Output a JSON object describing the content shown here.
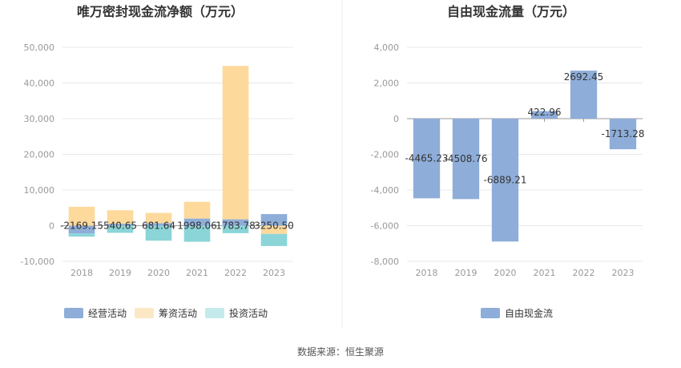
{
  "source_label": "数据来源：恒生聚源",
  "chart_data": [
    {
      "type": "bar",
      "stacked": true,
      "title": "唯万密封现金流净额（万元）",
      "categories": [
        "2018",
        "2019",
        "2020",
        "2021",
        "2022",
        "2023"
      ],
      "ylim": [
        -10000,
        50000
      ],
      "yticks": [
        -10000,
        0,
        10000,
        20000,
        30000,
        40000,
        50000
      ],
      "ytick_labels": [
        "-10,000",
        "0",
        "10,000",
        "20,000",
        "30,000",
        "40,000",
        "50,000"
      ],
      "grid": true,
      "legend_position": "bottom",
      "series": [
        {
          "name": "经营活动",
          "color": "#8eadd9",
          "values": [
            -2169.15,
            540.65,
            681.64,
            1998.06,
            1783.78,
            3250.5
          ],
          "labels": [
            "-2169.15",
            "540.65",
            "681.64",
            "1998.06",
            "1783.78",
            "3250.50"
          ]
        },
        {
          "name": "筹资活动",
          "color": "#fdd99c",
          "values": [
            5300,
            3800,
            2900,
            4700,
            43000,
            -2300
          ]
        },
        {
          "name": "投资活动",
          "color": "#8bd5d8",
          "values": [
            -900,
            -2000,
            -4200,
            -4500,
            -2100,
            -3400
          ]
        }
      ],
      "legend_colors": [
        "#8eadd9",
        "#fde8c6",
        "#c5eaec"
      ]
    },
    {
      "type": "bar",
      "title": "自由现金流量（万元）",
      "categories": [
        "2018",
        "2019",
        "2020",
        "2021",
        "2022",
        "2023"
      ],
      "ylim": [
        -8000,
        4000
      ],
      "yticks": [
        -8000,
        -6000,
        -4000,
        -2000,
        0,
        2000,
        4000
      ],
      "ytick_labels": [
        "-8,000",
        "-6,000",
        "-4,000",
        "-2,000",
        "0",
        "2,000",
        "4,000"
      ],
      "grid": true,
      "legend_position": "bottom",
      "series": [
        {
          "name": "自由现金流",
          "color": "#8eadd9",
          "values": [
            -4465.23,
            -4508.76,
            -6889.21,
            422.96,
            2692.45,
            -1713.28
          ],
          "labels": [
            "-4465.23",
            "-4508.76",
            "-6889.21",
            "422.96",
            "2692.45",
            "-1713.28"
          ]
        }
      ]
    }
  ]
}
